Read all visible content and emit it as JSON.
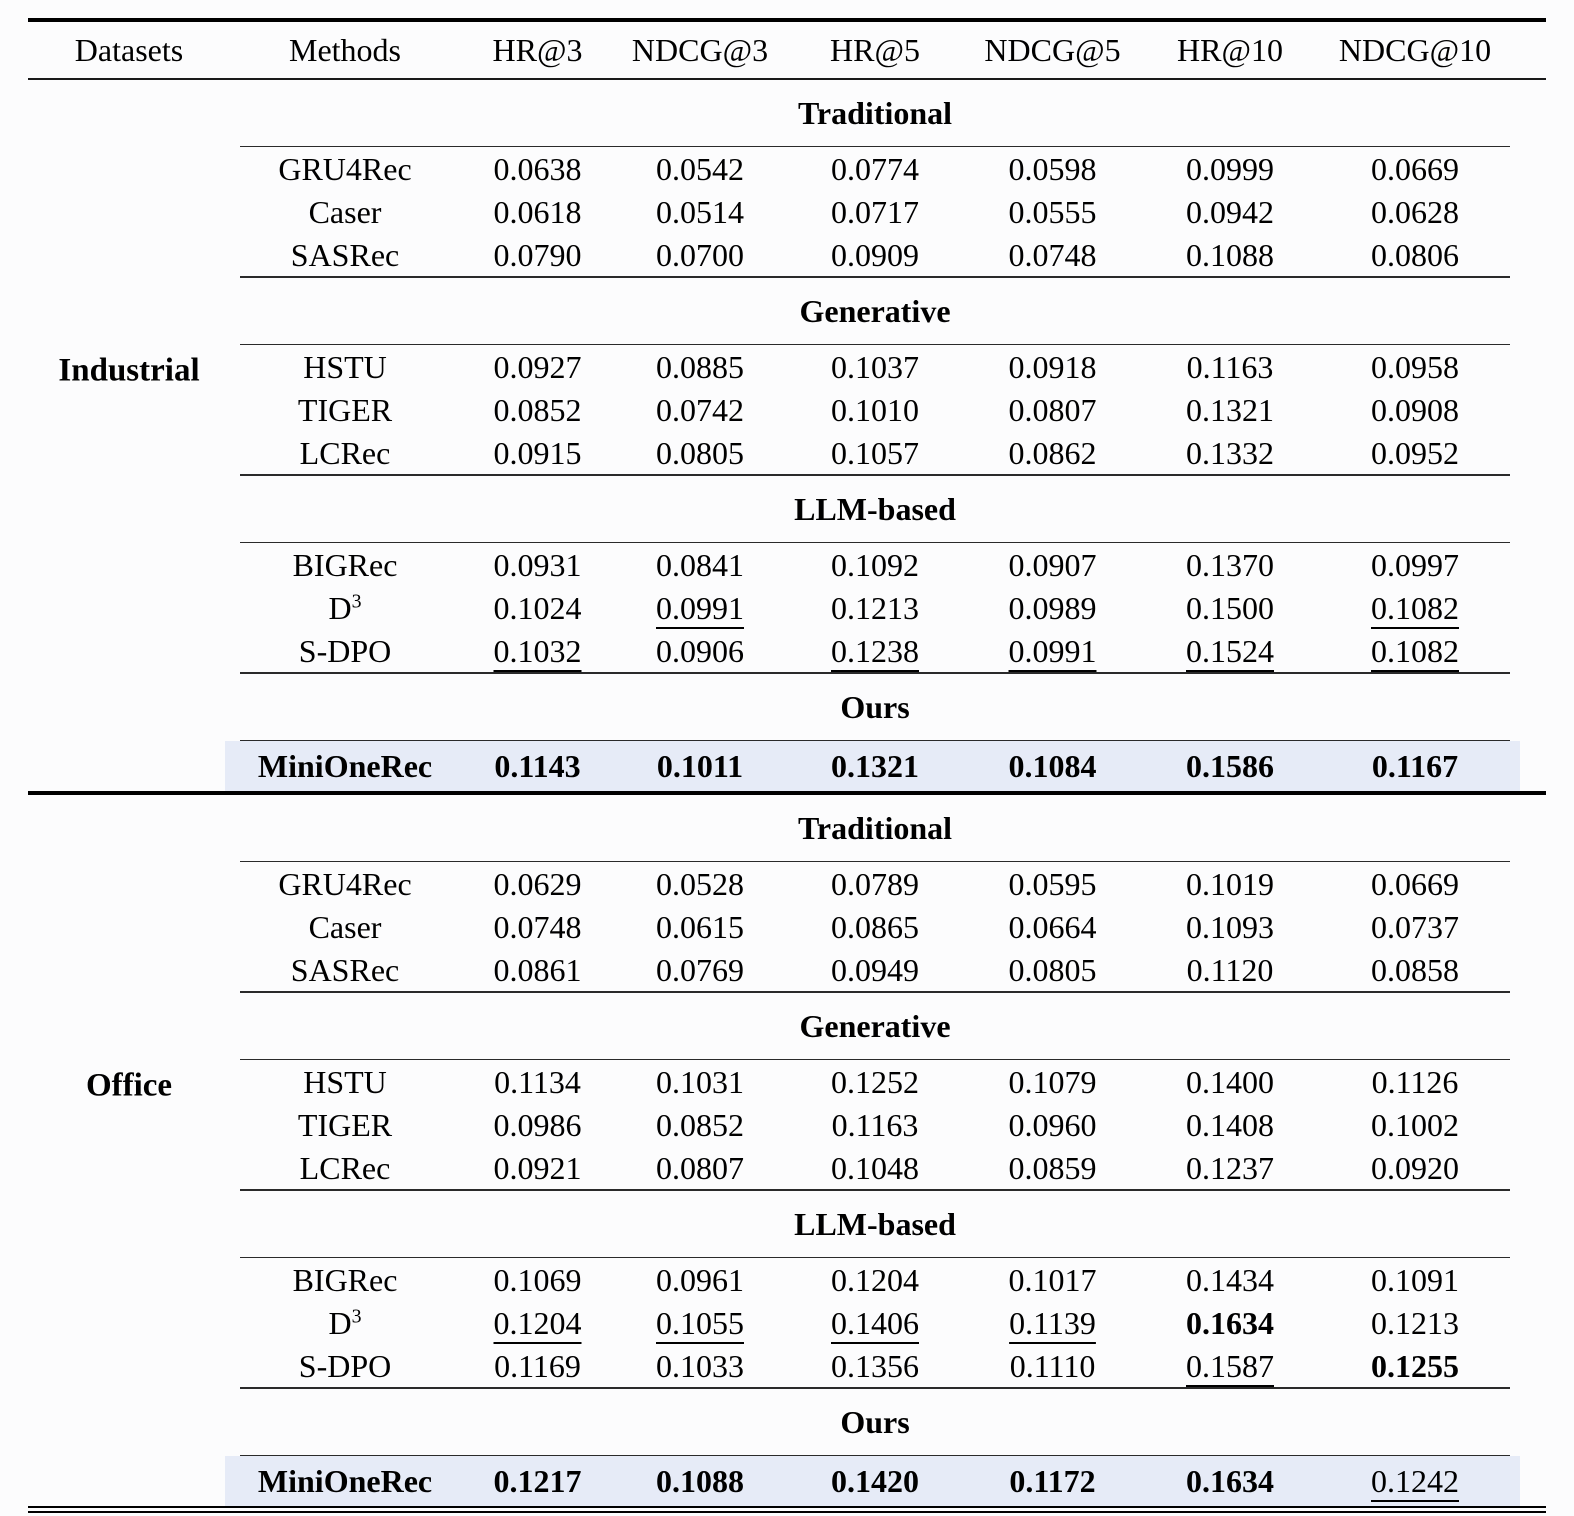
{
  "header": {
    "columns": [
      "Datasets",
      "Methods",
      "HR@3",
      "NDCG@3",
      "HR@5",
      "NDCG@5",
      "HR@10",
      "NDCG@10"
    ]
  },
  "colors": {
    "highlight_row": "#e6ebf7",
    "background": "#fcfcfd",
    "text": "#000000"
  },
  "datasets": [
    {
      "name": "Industrial",
      "sections": [
        {
          "label": "Traditional",
          "rows": [
            {
              "method": "GRU4Rec",
              "values": [
                "0.0638",
                "0.0542",
                "0.0774",
                "0.0598",
                "0.0999",
                "0.0669"
              ]
            },
            {
              "method": "Caser",
              "values": [
                "0.0618",
                "0.0514",
                "0.0717",
                "0.0555",
                "0.0942",
                "0.0628"
              ]
            },
            {
              "method": "SASRec",
              "values": [
                "0.0790",
                "0.0700",
                "0.0909",
                "0.0748",
                "0.1088",
                "0.0806"
              ]
            }
          ]
        },
        {
          "label": "Generative",
          "rows": [
            {
              "method": "HSTU",
              "values": [
                "0.0927",
                "0.0885",
                "0.1037",
                "0.0918",
                "0.1163",
                "0.0958"
              ]
            },
            {
              "method": "TIGER",
              "values": [
                "0.0852",
                "0.0742",
                "0.1010",
                "0.0807",
                "0.1321",
                "0.0908"
              ]
            },
            {
              "method": "LCRec",
              "values": [
                "0.0915",
                "0.0805",
                "0.1057",
                "0.0862",
                "0.1332",
                "0.0952"
              ]
            }
          ]
        },
        {
          "label": "LLM-based",
          "rows": [
            {
              "method": "BIGRec",
              "values": [
                "0.0931",
                "0.0841",
                "0.1092",
                "0.0907",
                "0.1370",
                "0.0997"
              ]
            },
            {
              "method": "D",
              "method_sup": "3",
              "values": [
                "0.1024",
                "0.0991",
                "0.1213",
                "0.0989",
                "0.1500",
                "0.1082"
              ]
            },
            {
              "method": "S-DPO",
              "values": [
                "0.1032",
                "0.0906",
                "0.1238",
                "0.0991",
                "0.1524",
                "0.1082"
              ]
            }
          ]
        },
        {
          "label": "Ours",
          "rows": [
            {
              "method": "MiniOneRec",
              "values": [
                "0.1143",
                "0.1011",
                "0.1321",
                "0.1084",
                "0.1586",
                "0.1167"
              ]
            }
          ]
        }
      ]
    },
    {
      "name": "Office",
      "sections": [
        {
          "label": "Traditional",
          "rows": [
            {
              "method": "GRU4Rec",
              "values": [
                "0.0629",
                "0.0528",
                "0.0789",
                "0.0595",
                "0.1019",
                "0.0669"
              ]
            },
            {
              "method": "Caser",
              "values": [
                "0.0748",
                "0.0615",
                "0.0865",
                "0.0664",
                "0.1093",
                "0.0737"
              ]
            },
            {
              "method": "SASRec",
              "values": [
                "0.0861",
                "0.0769",
                "0.0949",
                "0.0805",
                "0.1120",
                "0.0858"
              ]
            }
          ]
        },
        {
          "label": "Generative",
          "rows": [
            {
              "method": "HSTU",
              "values": [
                "0.1134",
                "0.1031",
                "0.1252",
                "0.1079",
                "0.1400",
                "0.1126"
              ]
            },
            {
              "method": "TIGER",
              "values": [
                "0.0986",
                "0.0852",
                "0.1163",
                "0.0960",
                "0.1408",
                "0.1002"
              ]
            },
            {
              "method": "LCRec",
              "values": [
                "0.0921",
                "0.0807",
                "0.1048",
                "0.0859",
                "0.1237",
                "0.0920"
              ]
            }
          ]
        },
        {
          "label": "LLM-based",
          "rows": [
            {
              "method": "BIGRec",
              "values": [
                "0.1069",
                "0.0961",
                "0.1204",
                "0.1017",
                "0.1434",
                "0.1091"
              ]
            },
            {
              "method": "D",
              "method_sup": "3",
              "values": [
                "0.1204",
                "0.1055",
                "0.1406",
                "0.1139",
                "0.1634",
                "0.1213"
              ]
            },
            {
              "method": "S-DPO",
              "values": [
                "0.1169",
                "0.1033",
                "0.1356",
                "0.1110",
                "0.1587",
                "0.1255"
              ]
            }
          ]
        },
        {
          "label": "Ours",
          "rows": [
            {
              "method": "MiniOneRec",
              "values": [
                "0.1217",
                "0.1088",
                "0.1420",
                "0.1172",
                "0.1634",
                "0.1242"
              ]
            }
          ]
        }
      ]
    }
  ]
}
